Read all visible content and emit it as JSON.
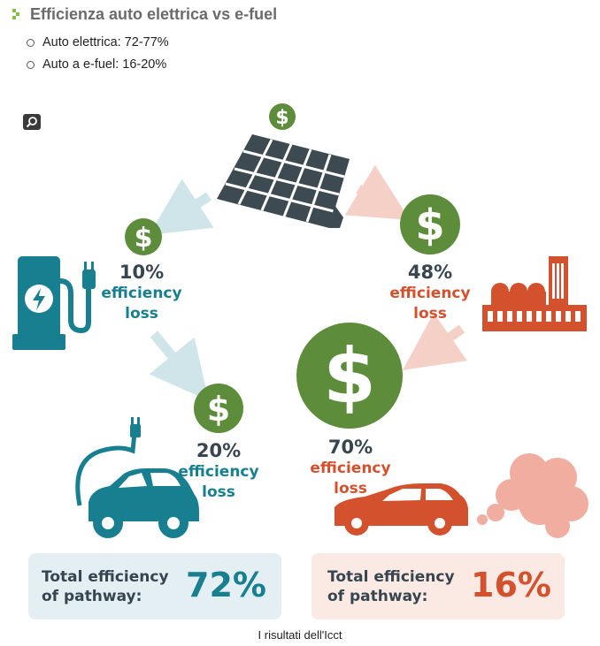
{
  "header": {
    "title": "Efficienza auto elettrica vs e-fuel",
    "bullets": [
      "Auto elettrica: 72-77%",
      "Auto a e-fuel: 16-20%"
    ]
  },
  "infographic": {
    "dollar_glyph": "$",
    "electric_path": {
      "step1": {
        "percent": "10%",
        "line1": "efficiency",
        "line2": "loss"
      },
      "step2": {
        "percent": "20%",
        "line1": "efficiency",
        "line2": "loss"
      },
      "total": {
        "line1": "Total efficiency",
        "line2": "of pathway:",
        "value": "72%"
      }
    },
    "efuel_path": {
      "step1": {
        "percent": "48%",
        "line1": "efficiency",
        "line2": "loss"
      },
      "step2": {
        "percent": "70%",
        "line1": "efficiency",
        "line2": "loss"
      },
      "total": {
        "line1": "Total efficiency",
        "line2": "of pathway:",
        "value": "16%"
      }
    }
  },
  "caption": "I risultati dell'Icct",
  "colors": {
    "teal": "#177f8f",
    "red": "#d4512e",
    "green": "#5d8c3a",
    "slate": "#36454f",
    "teal_box": "#e4eff3",
    "red_box": "#fbe9e4"
  }
}
